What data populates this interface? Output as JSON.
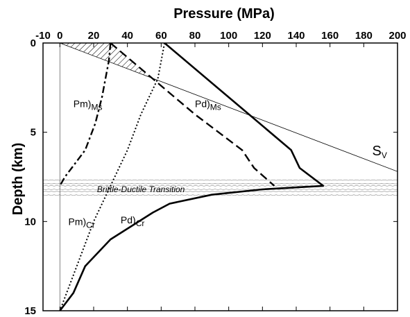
{
  "chart_data": {
    "type": "line",
    "xlabel": "Pressure (MPa)",
    "ylabel": "Depth (km)",
    "xlim": [
      -10,
      200
    ],
    "ylim": [
      0,
      15
    ],
    "y_inverted": true,
    "x_axis_position": "top",
    "x_ticks": [
      -10,
      0,
      20,
      40,
      60,
      80,
      100,
      120,
      140,
      160,
      180,
      200
    ],
    "y_ticks": [
      0,
      5,
      10,
      15
    ],
    "grid": false,
    "legend": "none",
    "series": [
      {
        "name": "Pm)Ms",
        "label_main": "Pm)",
        "label_sub": "Ms",
        "style": "dashdot",
        "x": [
          30,
          29,
          27,
          25,
          21,
          15,
          7,
          3,
          0
        ],
        "y": [
          0,
          1,
          2,
          3,
          4.5,
          6,
          7,
          7.5,
          8
        ]
      },
      {
        "name": "Pd)Ms",
        "label_main": "Pd)",
        "label_sub": "Ms",
        "style": "dashed",
        "x": [
          30,
          55,
          80,
          108,
          115,
          127
        ],
        "y": [
          0,
          2,
          4,
          6,
          7,
          8
        ]
      },
      {
        "name": "Pm)Cr",
        "label_main": "Pm)",
        "label_sub": "Cr",
        "style": "dotted",
        "x": [
          62,
          58,
          48,
          40,
          30,
          20,
          10,
          0
        ],
        "y": [
          0,
          2,
          4,
          6,
          8,
          10,
          12.5,
          15
        ]
      },
      {
        "name": "Pd)Cr",
        "label_main": "Pd)",
        "label_sub": "Cr",
        "style": "solid-thick",
        "x": [
          62,
          112,
          137,
          142,
          156,
          120,
          90,
          65,
          55,
          30,
          15,
          8,
          0
        ],
        "y": [
          0,
          4,
          6,
          7,
          8,
          8.2,
          8.5,
          9,
          9.5,
          11,
          12.5,
          14,
          15
        ]
      },
      {
        "name": "Sv",
        "label_main": "S",
        "label_sub": "V",
        "style": "thin",
        "x": [
          0,
          200
        ],
        "y": [
          0,
          7.2
        ]
      }
    ],
    "annotations": {
      "transition_label": "Brittle-Ductile Transition",
      "transition_depth_range": [
        7.7,
        8.5
      ],
      "hatched_region": "between Pd)Ms and Sv near surface"
    }
  }
}
